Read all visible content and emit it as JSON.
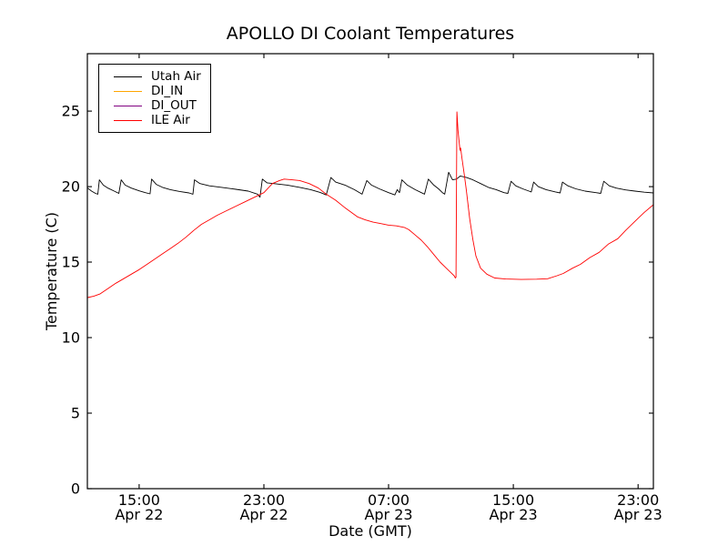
{
  "chart_data": {
    "type": "line",
    "title": "APOLLO DI Coolant Temperatures",
    "xlabel": "Date (GMT)",
    "ylabel": "Temperature (C)",
    "x_unit_note": "hours since Apr 22 00:00 GMT",
    "xlim": [
      11.68,
      47.98
    ],
    "ylim": [
      0,
      28.8
    ],
    "grid": false,
    "legend_position": "upper left",
    "frame_color": "#000000",
    "background_color": "#ffffff",
    "yticks": [
      0,
      5,
      10,
      15,
      20,
      25
    ],
    "xticks": [
      {
        "value": 15,
        "line1": "15:00",
        "line2": "Apr 22"
      },
      {
        "value": 23,
        "line1": "23:00",
        "line2": "Apr 22"
      },
      {
        "value": 31,
        "line1": "07:00",
        "line2": "Apr 23"
      },
      {
        "value": 39,
        "line1": "15:00",
        "line2": "Apr 23"
      },
      {
        "value": 47,
        "line1": "23:00",
        "line2": "Apr 23"
      }
    ],
    "series": [
      {
        "name": "Utah Air",
        "color": "#000000",
        "visible_in_plot": true,
        "points": [
          [
            11.7,
            19.9
          ],
          [
            11.95,
            19.7
          ],
          [
            12.2,
            19.55
          ],
          [
            12.35,
            19.5
          ],
          [
            12.45,
            20.45
          ],
          [
            12.7,
            20.1
          ],
          [
            13.0,
            19.9
          ],
          [
            13.4,
            19.7
          ],
          [
            13.7,
            19.55
          ],
          [
            13.85,
            20.45
          ],
          [
            14.1,
            20.1
          ],
          [
            14.5,
            19.9
          ],
          [
            15.0,
            19.72
          ],
          [
            15.4,
            19.6
          ],
          [
            15.7,
            19.52
          ],
          [
            15.8,
            20.5
          ],
          [
            16.1,
            20.15
          ],
          [
            16.5,
            19.95
          ],
          [
            17.0,
            19.8
          ],
          [
            17.6,
            19.68
          ],
          [
            18.2,
            19.58
          ],
          [
            18.45,
            19.5
          ],
          [
            18.55,
            20.45
          ],
          [
            18.9,
            20.2
          ],
          [
            19.5,
            20.05
          ],
          [
            20.3,
            19.95
          ],
          [
            21.2,
            19.82
          ],
          [
            22.0,
            19.7
          ],
          [
            22.6,
            19.5
          ],
          [
            22.75,
            19.3
          ],
          [
            22.9,
            20.5
          ],
          [
            23.2,
            20.25
          ],
          [
            23.8,
            20.18
          ],
          [
            24.5,
            20.1
          ],
          [
            25.3,
            19.95
          ],
          [
            26.0,
            19.8
          ],
          [
            26.6,
            19.62
          ],
          [
            27.0,
            19.45
          ],
          [
            27.3,
            20.6
          ],
          [
            27.6,
            20.3
          ],
          [
            28.2,
            20.1
          ],
          [
            28.8,
            19.8
          ],
          [
            29.3,
            19.5
          ],
          [
            29.6,
            20.4
          ],
          [
            29.9,
            20.1
          ],
          [
            30.4,
            19.85
          ],
          [
            31.0,
            19.6
          ],
          [
            31.4,
            19.45
          ],
          [
            31.55,
            19.8
          ],
          [
            31.7,
            19.6
          ],
          [
            31.85,
            20.45
          ],
          [
            32.2,
            20.1
          ],
          [
            32.7,
            19.8
          ],
          [
            33.1,
            19.6
          ],
          [
            33.3,
            19.5
          ],
          [
            33.55,
            20.5
          ],
          [
            33.9,
            20.1
          ],
          [
            34.2,
            19.85
          ],
          [
            34.45,
            19.6
          ],
          [
            34.6,
            19.5
          ],
          [
            34.85,
            20.95
          ],
          [
            35.1,
            20.45
          ],
          [
            35.35,
            20.5
          ],
          [
            35.6,
            20.7
          ],
          [
            36.0,
            20.6
          ],
          [
            36.4,
            20.45
          ],
          [
            36.9,
            20.2
          ],
          [
            37.4,
            19.95
          ],
          [
            37.9,
            19.8
          ],
          [
            38.4,
            19.6
          ],
          [
            38.65,
            19.55
          ],
          [
            38.85,
            20.35
          ],
          [
            39.15,
            20.05
          ],
          [
            39.6,
            19.85
          ],
          [
            40.0,
            19.7
          ],
          [
            40.15,
            19.65
          ],
          [
            40.3,
            20.3
          ],
          [
            40.6,
            20.0
          ],
          [
            41.1,
            19.8
          ],
          [
            41.7,
            19.65
          ],
          [
            42.0,
            19.58
          ],
          [
            42.15,
            20.3
          ],
          [
            42.5,
            20.05
          ],
          [
            43.0,
            19.85
          ],
          [
            43.6,
            19.7
          ],
          [
            44.3,
            19.6
          ],
          [
            44.6,
            19.55
          ],
          [
            44.8,
            20.35
          ],
          [
            45.15,
            20.05
          ],
          [
            45.6,
            19.9
          ],
          [
            46.2,
            19.78
          ],
          [
            46.8,
            19.7
          ],
          [
            47.4,
            19.63
          ],
          [
            47.98,
            19.58
          ]
        ]
      },
      {
        "name": "DI_IN",
        "color": "#ffa500",
        "visible_in_plot": false,
        "points": []
      },
      {
        "name": "DI_OUT",
        "color": "#800080",
        "visible_in_plot": false,
        "points": []
      },
      {
        "name": "ILE Air",
        "color": "#ff0000",
        "visible_in_plot": true,
        "points": [
          [
            11.7,
            12.65
          ],
          [
            12.1,
            12.75
          ],
          [
            12.5,
            12.9
          ],
          [
            13.0,
            13.25
          ],
          [
            13.5,
            13.6
          ],
          [
            14.0,
            13.9
          ],
          [
            14.5,
            14.2
          ],
          [
            15.0,
            14.5
          ],
          [
            15.5,
            14.85
          ],
          [
            16.0,
            15.2
          ],
          [
            16.5,
            15.55
          ],
          [
            17.0,
            15.9
          ],
          [
            17.5,
            16.25
          ],
          [
            18.0,
            16.65
          ],
          [
            18.5,
            17.1
          ],
          [
            19.0,
            17.5
          ],
          [
            19.5,
            17.8
          ],
          [
            20.0,
            18.1
          ],
          [
            20.6,
            18.4
          ],
          [
            21.2,
            18.7
          ],
          [
            21.8,
            19.0
          ],
          [
            22.4,
            19.3
          ],
          [
            23.0,
            19.6
          ],
          [
            23.55,
            20.2
          ],
          [
            24.0,
            20.4
          ],
          [
            24.3,
            20.5
          ],
          [
            24.8,
            20.45
          ],
          [
            25.3,
            20.4
          ],
          [
            25.9,
            20.2
          ],
          [
            26.5,
            19.9
          ],
          [
            27.0,
            19.5
          ],
          [
            27.6,
            19.1
          ],
          [
            28.2,
            18.6
          ],
          [
            28.6,
            18.3
          ],
          [
            29.0,
            18.0
          ],
          [
            29.5,
            17.8
          ],
          [
            30.0,
            17.65
          ],
          [
            30.5,
            17.55
          ],
          [
            31.0,
            17.45
          ],
          [
            31.5,
            17.4
          ],
          [
            32.0,
            17.3
          ],
          [
            32.3,
            17.15
          ],
          [
            32.7,
            16.8
          ],
          [
            33.1,
            16.45
          ],
          [
            33.5,
            16.0
          ],
          [
            33.9,
            15.5
          ],
          [
            34.3,
            15.0
          ],
          [
            34.7,
            14.6
          ],
          [
            35.0,
            14.3
          ],
          [
            35.2,
            14.1
          ],
          [
            35.28,
            13.95
          ],
          [
            35.32,
            14.0
          ],
          [
            35.38,
            24.95
          ],
          [
            35.45,
            23.7
          ],
          [
            35.52,
            23.0
          ],
          [
            35.58,
            22.4
          ],
          [
            35.62,
            22.55
          ],
          [
            35.7,
            21.9
          ],
          [
            35.85,
            20.8
          ],
          [
            35.98,
            19.8
          ],
          [
            36.2,
            17.9
          ],
          [
            36.4,
            16.5
          ],
          [
            36.6,
            15.4
          ],
          [
            36.9,
            14.6
          ],
          [
            37.3,
            14.2
          ],
          [
            37.8,
            13.95
          ],
          [
            38.5,
            13.88
          ],
          [
            39.5,
            13.85
          ],
          [
            40.5,
            13.87
          ],
          [
            41.2,
            13.9
          ],
          [
            41.8,
            14.1
          ],
          [
            42.2,
            14.25
          ],
          [
            42.8,
            14.6
          ],
          [
            43.3,
            14.85
          ],
          [
            43.9,
            15.3
          ],
          [
            44.5,
            15.65
          ],
          [
            45.1,
            16.2
          ],
          [
            45.7,
            16.55
          ],
          [
            46.2,
            17.1
          ],
          [
            46.8,
            17.7
          ],
          [
            47.4,
            18.3
          ],
          [
            47.98,
            18.8
          ]
        ]
      }
    ],
    "legend_entries": [
      "Utah Air",
      "DI_IN",
      "DI_OUT",
      "ILE Air"
    ]
  }
}
